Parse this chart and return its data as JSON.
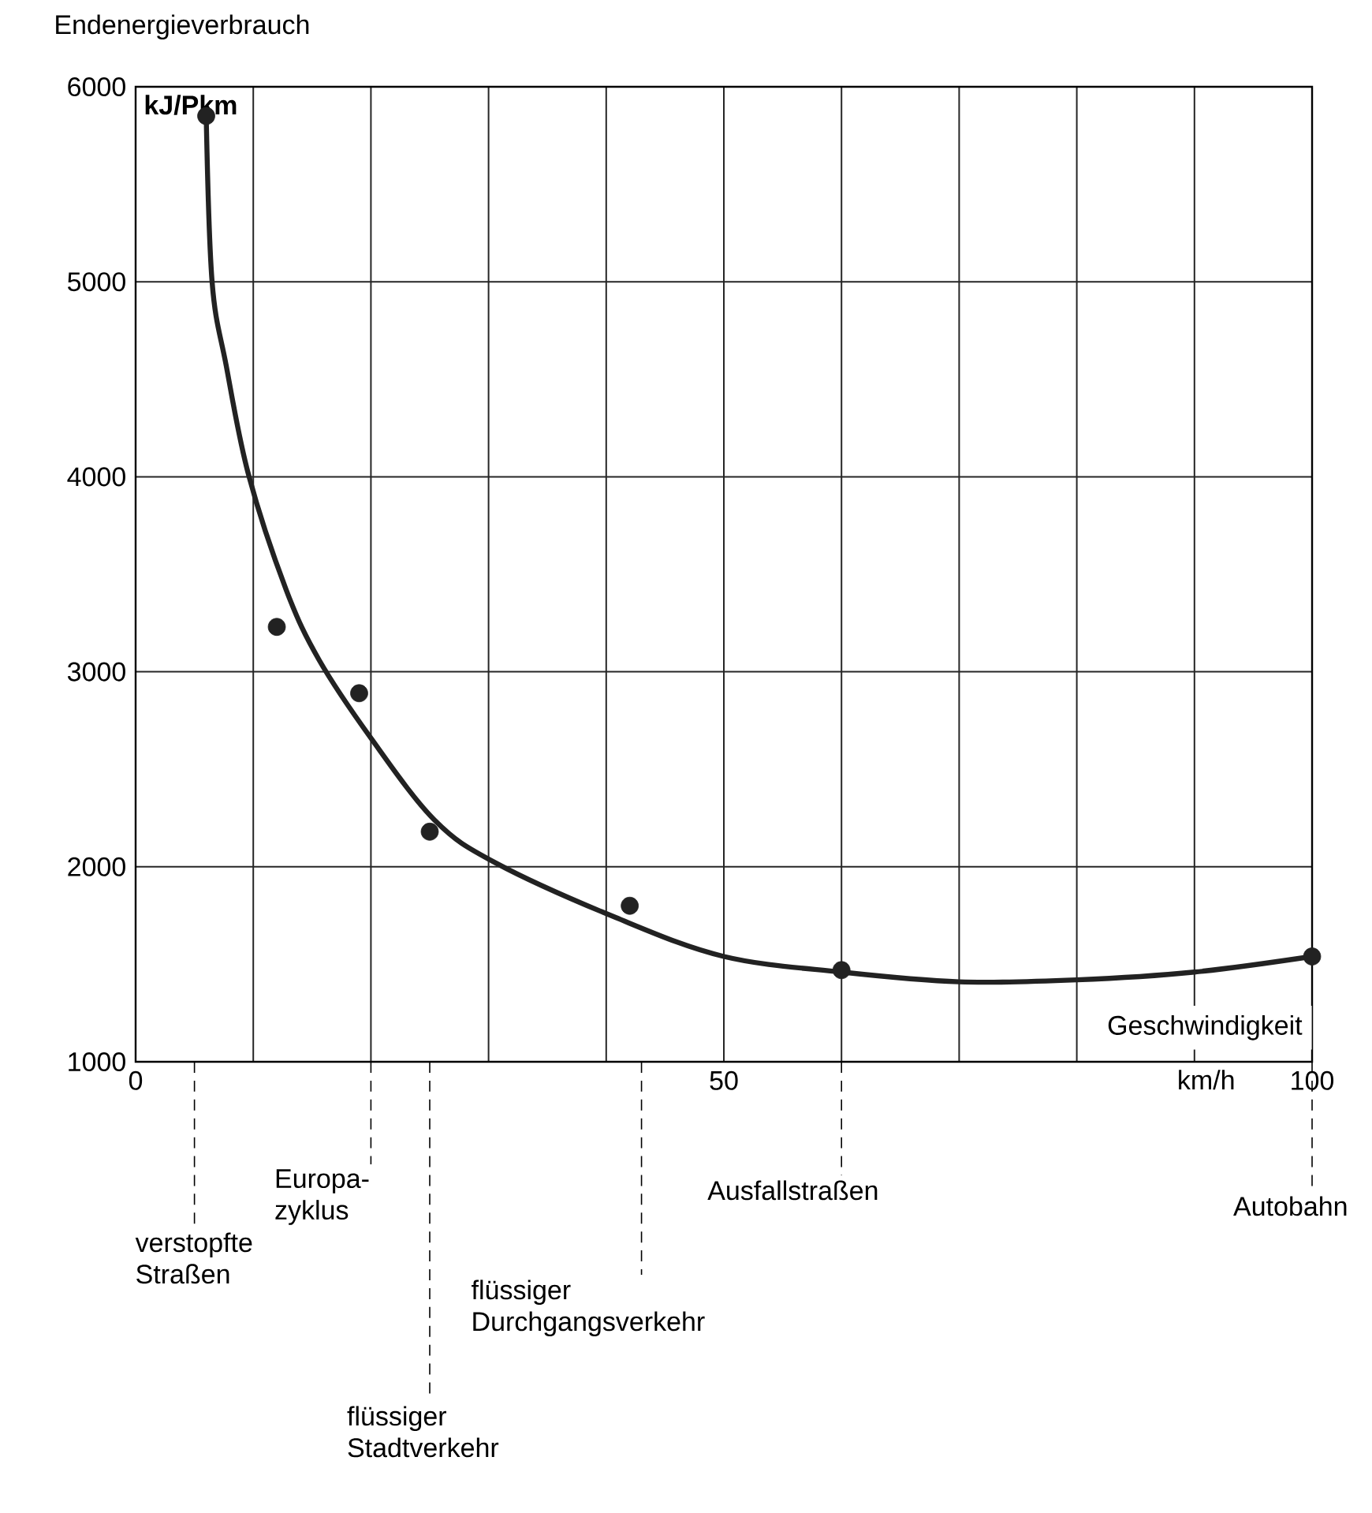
{
  "chart_data": {
    "type": "scatter",
    "ylabel": "Endenergieverbrauch",
    "xlabel": "Geschwindigkeit",
    "xlim": [
      0,
      100
    ],
    "ylim": [
      1000,
      6000
    ],
    "xticks": [
      0,
      {
        "value": 10,
        "label": null
      },
      {
        "value": 20,
        "label": null
      },
      {
        "value": 30,
        "label": null
      },
      {
        "value": 40,
        "label": null
      },
      50,
      {
        "value": 60,
        "label": null
      },
      {
        "value": 70,
        "label": null
      },
      {
        "value": 80,
        "label": null
      },
      {
        "value": 90,
        "label": null
      },
      100
    ],
    "yticks": [
      1000,
      2000,
      3000,
      4000,
      5000,
      6000
    ],
    "grid": true,
    "series": [
      {
        "type": "line",
        "color": "#222222",
        "marker": "none",
        "line_style": "solid",
        "x": [
          6,
          6.5,
          7.7,
          9.6,
          12.8,
          15.6,
          20,
          25.4,
          30.6,
          40.8,
          50,
          60,
          70,
          80,
          90,
          100
        ],
        "values": [
          5850,
          5000,
          4570,
          4010,
          3420,
          3060,
          2660,
          2240,
          2020,
          1740,
          1540,
          1460,
          1410,
          1420,
          1460,
          1540
        ]
      },
      {
        "color": "#222222",
        "marker": "circle",
        "x": [
          6,
          12,
          19,
          25,
          42,
          60,
          100
        ],
        "values": [
          5850,
          3230,
          2890,
          2180,
          1800,
          1470,
          1540
        ]
      }
    ],
    "annotations": [
      "verstopfte Straßen",
      "Europa-zyklus",
      "flüssiger Stadtverkehr",
      "flüssiger Durchgangsverkehr",
      "Ausfallstraßen",
      "Autobahn",
      "km/h",
      "kJ/Pkm"
    ]
  }
}
